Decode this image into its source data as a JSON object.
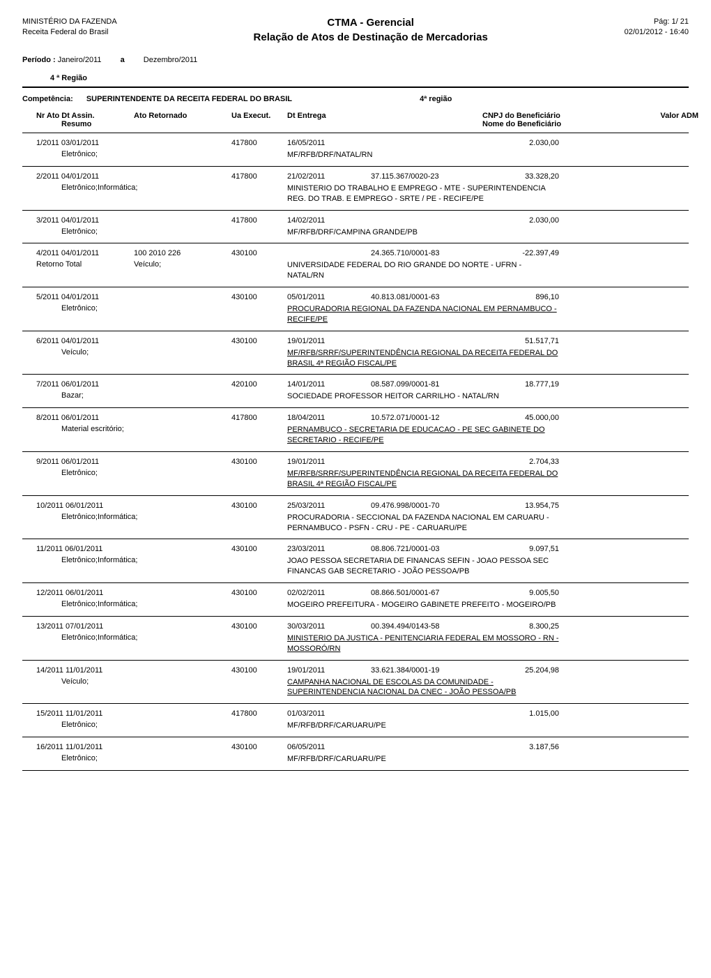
{
  "header": {
    "org1": "MINISTÉRIO DA FAZENDA",
    "org2": "Receita Federal do Brasil",
    "title1": "CTMA - Gerencial",
    "title2": "Relação de Atos de Destinação de Mercadorias",
    "page": "Pág: 1/ 21",
    "datetime": "02/01/2012 - 16:40"
  },
  "periodo": {
    "label": "Período :",
    "from": "Janeiro/2011",
    "connector": "a",
    "to": "Dezembro/2011"
  },
  "regiao": "4 ª Região",
  "competencia": {
    "label": "Competência:",
    "value": "SUPERINTENDENTE DA RECEITA FEDERAL DO BRASIL",
    "regiao": "4ª região"
  },
  "columns": {
    "c1": "Nr Ato  Dt Assin.",
    "c1b": "Resumo",
    "c2": "Ato Retornado",
    "c3": "Ua Execut.",
    "c4": "Dt Entrega",
    "c5": "CNPJ do Beneficiário",
    "c5b": "Nome do Beneficiário",
    "c6": "Valor ADM"
  },
  "entries": [
    {
      "nr": "1/2011",
      "dt": "03/01/2011",
      "ato": "",
      "ua": "417800",
      "entrega": "16/05/2011",
      "cnpj": "",
      "valor": "2.030,00",
      "resumo": "Eletrônico;",
      "retorno": "",
      "resumo2": "",
      "desc": "MF/RFB/DRF/NATAL/RN",
      "underline": false
    },
    {
      "nr": "2/2011",
      "dt": "04/01/2011",
      "ato": "",
      "ua": "417800",
      "entrega": "21/02/2011",
      "cnpj": "37.115.367/0020-23",
      "valor": "33.328,20",
      "resumo": "Eletrônico;Informática;",
      "retorno": "",
      "resumo2": "",
      "desc": "MINISTERIO DO TRABALHO E EMPREGO - MTE - SUPERINTENDENCIA REG. DO TRAB. E EMPREGO - SRTE / PE - RECIFE/PE",
      "underline": false
    },
    {
      "nr": "3/2011",
      "dt": "04/01/2011",
      "ato": "",
      "ua": "417800",
      "entrega": "14/02/2011",
      "cnpj": "",
      "valor": "2.030,00",
      "resumo": "Eletrônico;",
      "retorno": "",
      "resumo2": "",
      "desc": "MF/RFB/DRF/CAMPINA GRANDE/PB",
      "underline": false
    },
    {
      "nr": "4/2011",
      "dt": "04/01/2011",
      "ato": "100 2010 226",
      "ua": "430100",
      "entrega": "",
      "cnpj": "24.365.710/0001-83",
      "valor": "-22.397,49",
      "resumo": "",
      "retorno": "Retorno Total",
      "resumo2": "Veículo;",
      "desc": "UNIVERSIDADE FEDERAL DO RIO GRANDE DO NORTE - UFRN - NATAL/RN",
      "underline": false
    },
    {
      "nr": "5/2011",
      "dt": "04/01/2011",
      "ato": "",
      "ua": "430100",
      "entrega": "05/01/2011",
      "cnpj": "40.813.081/0001-63",
      "valor": "896,10",
      "resumo": "Eletrônico;",
      "retorno": "",
      "resumo2": "",
      "desc": "PROCURADORIA REGIONAL DA FAZENDA NACIONAL EM PERNAMBUCO - RECIFE/PE",
      "underline": true
    },
    {
      "nr": "6/2011",
      "dt": "04/01/2011",
      "ato": "",
      "ua": "430100",
      "entrega": "19/01/2011",
      "cnpj": "",
      "valor": "51.517,71",
      "resumo": "Veículo;",
      "retorno": "",
      "resumo2": "",
      "desc": "MF/RFB/SRRF/SUPERINTENDÊNCIA REGIONAL DA RECEITA FEDERAL DO BRASIL 4ª REGIÃO FISCAL/PE",
      "underline": true
    },
    {
      "nr": "7/2011",
      "dt": "06/01/2011",
      "ato": "",
      "ua": "420100",
      "entrega": "14/01/2011",
      "cnpj": "08.587.099/0001-81",
      "valor": "18.777,19",
      "resumo": "Bazar;",
      "retorno": "",
      "resumo2": "",
      "desc": "SOCIEDADE PROFESSOR HEITOR CARRILHO - NATAL/RN",
      "underline": false
    },
    {
      "nr": "8/2011",
      "dt": "06/01/2011",
      "ato": "",
      "ua": "417800",
      "entrega": "18/04/2011",
      "cnpj": "10.572.071/0001-12",
      "valor": "45.000,00",
      "resumo": "Material escritório;",
      "retorno": "",
      "resumo2": "",
      "desc": "PERNAMBUCO - SECRETARIA DE EDUCACAO - PE SEC GABINETE DO SECRETARIO - RECIFE/PE",
      "underline": true
    },
    {
      "nr": "9/2011",
      "dt": "06/01/2011",
      "ato": "",
      "ua": "430100",
      "entrega": "19/01/2011",
      "cnpj": "",
      "valor": "2.704,33",
      "resumo": "Eletrônico;",
      "retorno": "",
      "resumo2": "",
      "desc": "MF/RFB/SRRF/SUPERINTENDÊNCIA REGIONAL DA RECEITA FEDERAL DO BRASIL 4ª REGIÃO FISCAL/PE",
      "underline": true
    },
    {
      "nr": "10/2011",
      "dt": "06/01/2011",
      "ato": "",
      "ua": "430100",
      "entrega": "25/03/2011",
      "cnpj": "09.476.998/0001-70",
      "valor": "13.954,75",
      "resumo": "Eletrônico;Informática;",
      "retorno": "",
      "resumo2": "",
      "desc": "PROCURADORIA - SECCIONAL DA FAZENDA NACIONAL EM CARUARU - PERNAMBUCO - PSFN - CRU - PE - CARUARU/PE",
      "underline": false
    },
    {
      "nr": "11/2011",
      "dt": "06/01/2011",
      "ato": "",
      "ua": "430100",
      "entrega": "23/03/2011",
      "cnpj": "08.806.721/0001-03",
      "valor": "9.097,51",
      "resumo": "Eletrônico;Informática;",
      "retorno": "",
      "resumo2": "",
      "desc": "JOAO PESSOA SECRETARIA DE FINANCAS SEFIN - JOAO PESSOA SEC FINANCAS GAB SECRETARIO - JOÃO PESSOA/PB",
      "underline": false
    },
    {
      "nr": "12/2011",
      "dt": "06/01/2011",
      "ato": "",
      "ua": "430100",
      "entrega": "02/02/2011",
      "cnpj": "08.866.501/0001-67",
      "valor": "9.005,50",
      "resumo": "Eletrônico;Informática;",
      "retorno": "",
      "resumo2": "",
      "desc": "MOGEIRO PREFEITURA - MOGEIRO GABINETE PREFEITO - MOGEIRO/PB",
      "underline": false
    },
    {
      "nr": "13/2011",
      "dt": "07/01/2011",
      "ato": "",
      "ua": "430100",
      "entrega": "30/03/2011",
      "cnpj": "00.394.494/0143-58",
      "valor": "8.300,25",
      "resumo": "Eletrônico;Informática;",
      "retorno": "",
      "resumo2": "",
      "desc": "MINISTERIO DA JUSTICA - PENITENCIARIA FEDERAL EM MOSSORO - RN - MOSSORÓ/RN",
      "underline": true
    },
    {
      "nr": "14/2011",
      "dt": "11/01/2011",
      "ato": "",
      "ua": "430100",
      "entrega": "19/01/2011",
      "cnpj": "33.621.384/0001-19",
      "valor": "25.204,98",
      "resumo": "Veículo;",
      "retorno": "",
      "resumo2": "",
      "desc": "CAMPANHA NACIONAL DE ESCOLAS DA COMUNIDADE - SUPERINTENDENCIA NACIONAL DA CNEC - JOÃO PESSOA/PB",
      "underline": true
    },
    {
      "nr": "15/2011",
      "dt": "11/01/2011",
      "ato": "",
      "ua": "417800",
      "entrega": "01/03/2011",
      "cnpj": "",
      "valor": "1.015,00",
      "resumo": "Eletrônico;",
      "retorno": "",
      "resumo2": "",
      "desc": "MF/RFB/DRF/CARUARU/PE",
      "underline": false
    },
    {
      "nr": "16/2011",
      "dt": "11/01/2011",
      "ato": "",
      "ua": "430100",
      "entrega": "06/05/2011",
      "cnpj": "",
      "valor": "3.187,56",
      "resumo": "Eletrônico;",
      "retorno": "",
      "resumo2": "",
      "desc": "MF/RFB/DRF/CARUARU/PE",
      "underline": false
    }
  ]
}
